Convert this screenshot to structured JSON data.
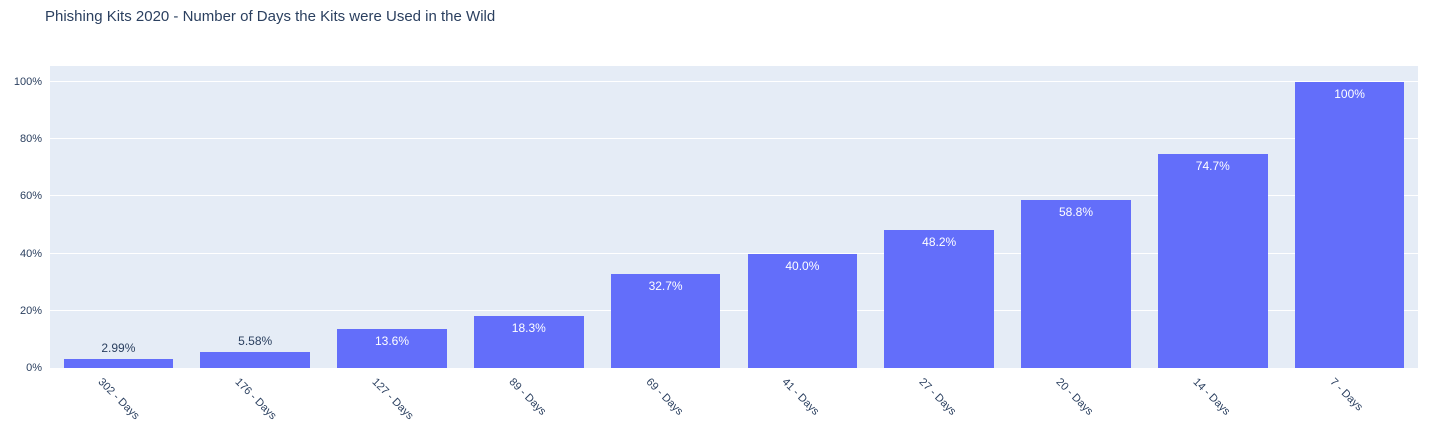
{
  "chart_data": {
    "type": "bar",
    "title": "Phishing Kits 2020 - Number of Days the Kits were Used in the Wild",
    "categories": [
      "302 - Days",
      "176 - Days",
      "127 - Days",
      "89 - Days",
      "69 - Days",
      "41 - Days",
      "27 - Days",
      "20 - Days",
      "14 - Days",
      "7 - Days"
    ],
    "values": [
      2.99,
      5.58,
      13.6,
      18.3,
      32.7,
      40.0,
      48.2,
      58.8,
      74.7,
      100
    ],
    "bar_labels": [
      "2.99%",
      "5.58%",
      "13.6%",
      "18.3%",
      "32.7%",
      "40.0%",
      "48.2%",
      "58.8%",
      "74.7%",
      "100%"
    ],
    "bar_label_positions": [
      "outside",
      "outside",
      "inside",
      "inside",
      "inside",
      "inside",
      "inside",
      "inside",
      "inside",
      "inside"
    ],
    "xlabel": "",
    "ylabel": "",
    "y_ticks": [
      "0%",
      "20%",
      "40%",
      "60%",
      "80%",
      "100%"
    ],
    "y_tick_values": [
      0,
      20,
      40,
      60,
      80,
      100
    ],
    "ylim": [
      0,
      105.6
    ],
    "grid": true,
    "legend": "none",
    "colors": {
      "bar": "#636efa",
      "plot_background": "#e5ecf6",
      "gridline": "#ffffff",
      "text": "#2a3f5f",
      "inside_label": "#ffffff"
    }
  }
}
